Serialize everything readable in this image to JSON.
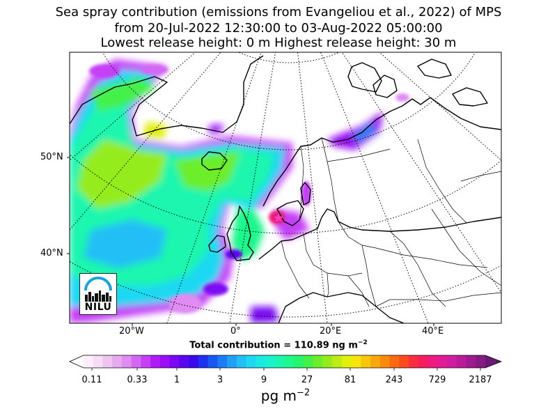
{
  "title": {
    "line1": "Sea spray contribution (emissions from Evangeliou et al., 2022) of MPS",
    "line2": "from 20-Jul-2022 12:30:00 to 03-Aug-2022 05:00:00",
    "line3": "Lowest release height: 0 m      Highest release height: 30 m"
  },
  "lat_ticks": [
    "50°N",
    "40°N"
  ],
  "lon_ticks": [
    "20°W",
    "0°",
    "20°E",
    "40°E"
  ],
  "total_text": "Total contribution = 110.89 ng m",
  "total_exp": "−2",
  "colorbar": {
    "labels": [
      "0.11",
      "0.33",
      "1",
      "3",
      "9",
      "27",
      "81",
      "243",
      "729",
      "2187"
    ],
    "unit": "pg m",
    "unit_exp": "−2",
    "colors": [
      "#fbeefb",
      "#f6dcf6",
      "#efc4f0",
      "#e7aaf0",
      "#e08cf2",
      "#d468f5",
      "#c43ff6",
      "#b11cf6",
      "#9a0df5",
      "#7b08f2",
      "#5a06ee",
      "#3a0aee",
      "#2030f0",
      "#1758f2",
      "#1c7cf4",
      "#20a0f6",
      "#22bff6",
      "#1ed8f2",
      "#1ae8e4",
      "#19f2cc",
      "#1af6ae",
      "#1ef78c",
      "#27f46a",
      "#44f048",
      "#6cee2c",
      "#95ec1c",
      "#bdec12",
      "#e2ee0c",
      "#f6e40a",
      "#f8c60c",
      "#f9a80c",
      "#f98a0c",
      "#fa6a10",
      "#fa4a1e",
      "#f82e3e",
      "#f41e5e",
      "#ee1a7c",
      "#e21a96",
      "#d01c9e",
      "#b81c98",
      "#9e1a8e",
      "#841a82"
    ],
    "extend_under": "#ffffff",
    "extend_over": "#6a1872"
  },
  "logo": {
    "text": "NILU"
  },
  "release_site_marker": "pink-star"
}
